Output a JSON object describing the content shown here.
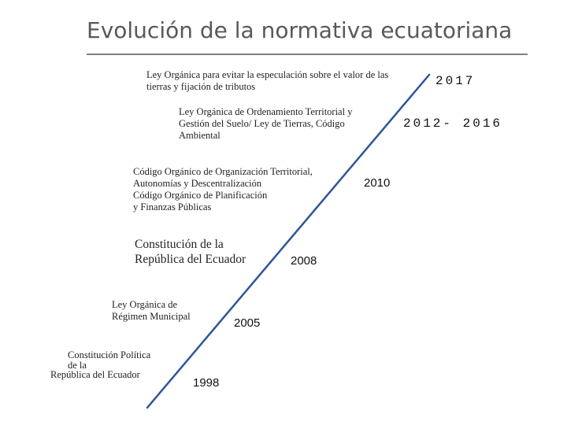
{
  "title": "Evolución de la normativa ecuatoriana",
  "timeline": [
    {
      "year": "2017",
      "lines": [
        "Ley Orgánica para evitar la especulación sobre el valor de las",
        "tierras y fijación de tributos"
      ]
    },
    {
      "year": "2012- 2016",
      "lines": [
        "Ley Orgánica de Ordenamiento Territorial y",
        "Gestión del Suelo/ Ley de Tierras, Código",
        "Ambiental"
      ]
    },
    {
      "year": "2010",
      "lines": [
        "Código Orgánico de Organización Territorial,",
        "Autonomías y Descentralización",
        "Código Orgánico de Planificación",
        "y Finanzas Públicas"
      ]
    },
    {
      "year": "2008",
      "lines": [
        "Constitución de la",
        "República del Ecuador"
      ]
    },
    {
      "year": "2005",
      "lines": [
        "Ley Orgánica de",
        "Régimen Municipal"
      ]
    },
    {
      "year": "1998",
      "lines": [
        "Constitución Política",
        "de la",
        "República del Ecuador"
      ]
    }
  ],
  "colors": {
    "timeline_line": "#2f5597",
    "title_text": "#595959",
    "title_rule": "#7f7f7f"
  }
}
